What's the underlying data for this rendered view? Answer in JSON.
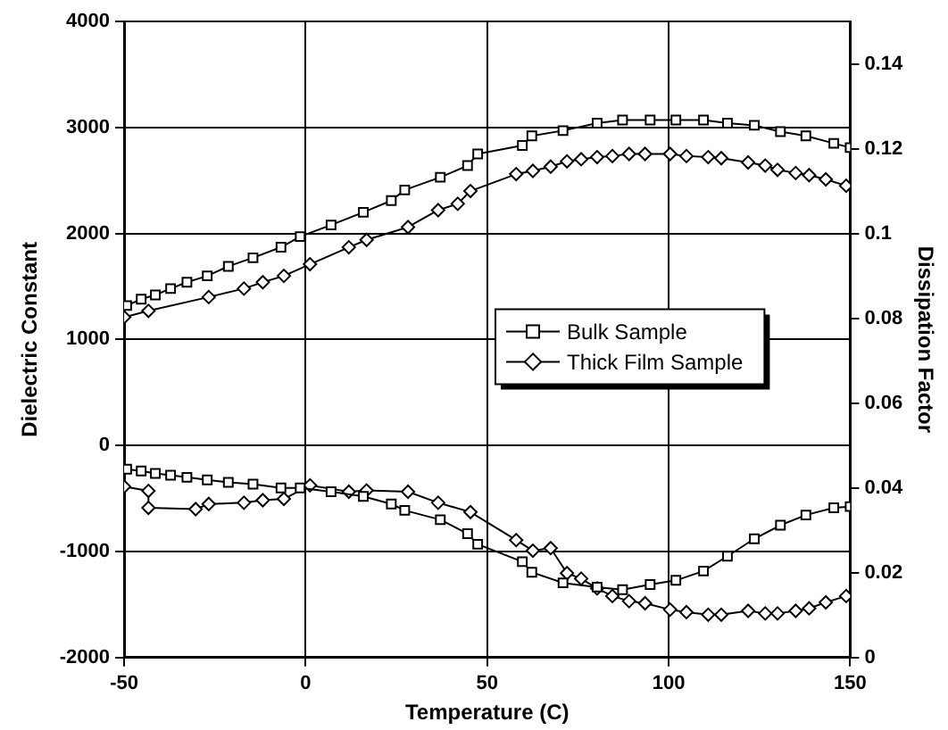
{
  "chart_data": {
    "type": "line",
    "xlabel": "Temperature (C)",
    "ylabel": "Dielectric Constant",
    "y2label": "Dissipation Factor",
    "xlim": [
      -50,
      150
    ],
    "xticks": [
      -50,
      0,
      50,
      100,
      150
    ],
    "ylim": [
      -2000,
      4000
    ],
    "yticks": [
      -2000,
      -1000,
      0,
      1000,
      2000,
      3000,
      4000
    ],
    "y2lim": [
      0,
      0.15
    ],
    "y2ticks": [
      0,
      0.02,
      0.04,
      0.06,
      0.08,
      0.1,
      0.12,
      0.14
    ],
    "grid": true,
    "legend": "center right",
    "line_style": "solid",
    "series": [
      {
        "name": "Bulk Sample",
        "color": "#000000",
        "marker": "square",
        "x": [
          -49.3,
          -45.3,
          -41.4,
          -37.2,
          -32.7,
          -27.1,
          -21.3,
          -14.5,
          -6.8,
          -1.5,
          7,
          15.9,
          23.6,
          27.3,
          37.1,
          44.6,
          47.4,
          59.7,
          62.3,
          70.9,
          80.3,
          87.3,
          94.9,
          102,
          109.6,
          116.2,
          123.6,
          130.8,
          137.8,
          145.5,
          150
        ],
        "values": [
          1320,
          1380,
          1420,
          1480,
          1540,
          1600,
          1690,
          1770,
          1870,
          1970,
          2080,
          2200,
          2310,
          2410,
          2530,
          2640,
          2750,
          2830,
          2920,
          2970,
          3040,
          3070,
          3070,
          3070,
          3070,
          3040,
          3020,
          2960,
          2920,
          2850,
          2810
        ]
      },
      {
        "name": "Thick Film Sample",
        "color": "#000000",
        "marker": "diamond",
        "x": [
          -50,
          -43.3,
          -26.7,
          -17,
          -11.8,
          -6,
          1.2,
          11.9,
          16.8,
          28.2,
          36.5,
          41.9,
          45.4,
          58,
          62.6,
          67.5,
          72,
          75.9,
          80.3,
          84.5,
          89.1,
          93.5,
          100.4,
          104.9,
          110.9,
          114.5,
          121.9,
          126.6,
          130,
          135,
          138.7,
          143.3,
          148.9
        ],
        "values": [
          1210,
          1270,
          1400,
          1480,
          1540,
          1600,
          1710,
          1870,
          1940,
          2060,
          2220,
          2280,
          2400,
          2560,
          2590,
          2630,
          2680,
          2700,
          2720,
          2730,
          2750,
          2750,
          2750,
          2730,
          2720,
          2710,
          2670,
          2640,
          2600,
          2570,
          2550,
          2510,
          2450
        ]
      },
      {
        "color": "#000000",
        "marker": "square",
        "axis": "y2",
        "x": [
          -49.3,
          -45.3,
          -41.4,
          -37.2,
          -32.7,
          -27.1,
          -21.3,
          -14.5,
          -6.8,
          -1.5,
          7,
          15.9,
          23.6,
          27.3,
          37.1,
          44.6,
          47.4,
          59.7,
          62.3,
          70.9,
          80.3,
          87.3,
          94.9,
          102,
          109.6,
          116.2,
          123.6,
          130.8,
          137.8,
          145.5,
          150
        ],
        "values": [
          0.0444,
          0.044,
          0.0434,
          0.043,
          0.0425,
          0.0419,
          0.0413,
          0.0409,
          0.04,
          0.04,
          0.0391,
          0.038,
          0.0362,
          0.0347,
          0.0325,
          0.0292,
          0.0267,
          0.0226,
          0.0201,
          0.0176,
          0.0166,
          0.016,
          0.0172,
          0.0182,
          0.0204,
          0.0239,
          0.028,
          0.0312,
          0.0336,
          0.0353,
          0.0356
        ]
      },
      {
        "color": "#000000",
        "marker": "diamond",
        "axis": "y2",
        "x": [
          -50,
          -43.3,
          -43.3,
          -30.3,
          -26.7,
          -17,
          -11.8,
          -6,
          1.2,
          11.9,
          16.8,
          28.2,
          36.5,
          45.4,
          58,
          62.6,
          67.5,
          72,
          75.9,
          80.3,
          84.5,
          89.1,
          93.5,
          100.4,
          104.9,
          110.9,
          114.5,
          121.9,
          126.6,
          130,
          135,
          138.7,
          143.3,
          148.9
        ],
        "values": [
          0.0403,
          0.0393,
          0.0353,
          0.035,
          0.0362,
          0.0365,
          0.0371,
          0.0374,
          0.0406,
          0.0391,
          0.0394,
          0.0391,
          0.0365,
          0.0343,
          0.0277,
          0.0252,
          0.0258,
          0.0199,
          0.0186,
          0.0163,
          0.0145,
          0.0133,
          0.0128,
          0.0113,
          0.0107,
          0.0101,
          0.0101,
          0.011,
          0.0104,
          0.0104,
          0.011,
          0.0116,
          0.013,
          0.0145
        ]
      }
    ]
  }
}
